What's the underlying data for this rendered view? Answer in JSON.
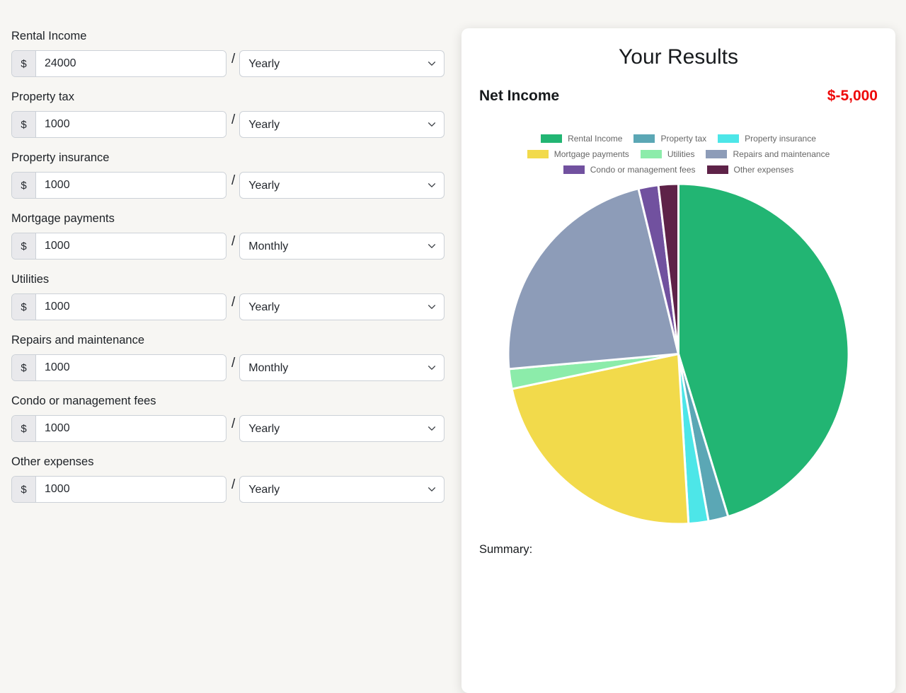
{
  "form": {
    "currency_symbol": "$",
    "separator": "/",
    "fields": [
      {
        "label": "Rental Income",
        "amount": "24000",
        "period": "Yearly"
      },
      {
        "label": "Property tax",
        "amount": "1000",
        "period": "Yearly"
      },
      {
        "label": "Property insurance",
        "amount": "1000",
        "period": "Yearly"
      },
      {
        "label": "Mortgage payments",
        "amount": "1000",
        "period": "Monthly"
      },
      {
        "label": "Utilities",
        "amount": "1000",
        "period": "Yearly"
      },
      {
        "label": "Repairs and maintenance",
        "amount": "1000",
        "period": "Monthly"
      },
      {
        "label": "Condo or management fees",
        "amount": "1000",
        "period": "Yearly"
      },
      {
        "label": "Other expenses",
        "amount": "1000",
        "period": "Yearly"
      }
    ]
  },
  "results": {
    "title": "Your Results",
    "net_income_label": "Net Income",
    "net_income_value": "$-5,000",
    "net_income_color": "#ee0909",
    "summary_label": "Summary:"
  },
  "chart_data": {
    "type": "pie",
    "title": "",
    "labels": [
      "Rental Income",
      "Property tax",
      "Property insurance",
      "Mortgage payments",
      "Utilities",
      "Repairs and maintenance",
      "Condo or management fees",
      "Other expenses"
    ],
    "values": [
      24000,
      1000,
      1000,
      12000,
      1000,
      12000,
      1000,
      1000
    ],
    "colors": [
      "#22b573",
      "#5ba7b5",
      "#4de6e8",
      "#f2da4b",
      "#8cecaa",
      "#8d9cb8",
      "#71519f",
      "#5e2248"
    ],
    "legend_position": "top",
    "legend_rows": [
      [
        0,
        1,
        2
      ],
      [
        3,
        4,
        5
      ],
      [
        6,
        7
      ]
    ],
    "start_angle_deg": -90,
    "direction": "clockwise",
    "border_color": "#ffffff",
    "border_width": 3
  }
}
